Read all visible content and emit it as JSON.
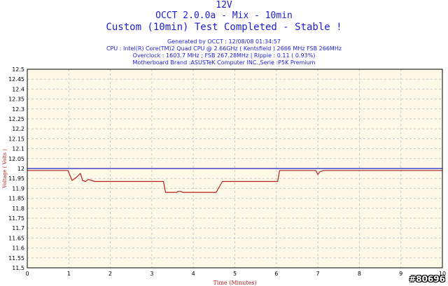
{
  "header": {
    "line1": "12V",
    "line2": "OCCT 2.0.0a - Mix - 10min",
    "line3": "Custom (10min) Test Completed - Stable !",
    "generated": "Generated by OCCT : 12/08/08 01:34:57",
    "cpu": "CPU : Intel(R) Core(TM)2 Quad CPU @ 2.66GHz ( Kentsfield ) 2666 MHz FSB 266MHz",
    "overclock": "Overclock : 1603.7 MHz ; FSB 267.28MHz | Ripple : 0.11 ( 0.93%)",
    "motherboard": "Motherboard Brand :ASUSTeK Computer INC.,Serie :P5K Premium"
  },
  "watermark": "#80696",
  "colors": {
    "plot_bg": "#fdf9e6",
    "grid": "#c8c8c8",
    "axis_label": "#b42020",
    "title": "#1c1cd4",
    "series_voltage": "#b42020",
    "series_reference": "#2020c8"
  },
  "chart_data": {
    "type": "line",
    "xlabel": "Time (Minutes)",
    "ylabel": "Voltage ( Volts )",
    "xlim": [
      0,
      10
    ],
    "ylim": [
      11.5,
      12.5
    ],
    "xticks": [
      "0",
      "1",
      "2",
      "3",
      "4",
      "5",
      "6",
      "7",
      "8",
      "9",
      "10"
    ],
    "yticks": [
      "11.5",
      "11.55",
      "11.6",
      "11.65",
      "11.7",
      "11.75",
      "11.8",
      "11.85",
      "11.9",
      "11.95",
      "12",
      "12.05",
      "12.1",
      "12.15",
      "12.2",
      "12.25",
      "12.3",
      "12.35",
      "12.4",
      "12.45",
      "12.5"
    ],
    "grid": true,
    "series": [
      {
        "x": [
          0,
          0.98,
          1.08,
          1.18,
          1.28,
          1.33,
          1.4,
          1.47,
          1.55,
          1.62,
          3.28,
          3.33,
          3.6,
          3.63,
          3.7,
          3.74,
          4.55,
          4.7,
          5.0,
          6.03,
          6.08,
          6.95,
          7.0,
          7.05,
          7.15,
          10
        ],
        "y": [
          11.99,
          11.99,
          11.94,
          11.955,
          11.975,
          11.94,
          11.935,
          11.945,
          11.94,
          11.935,
          11.935,
          11.88,
          11.88,
          11.885,
          11.885,
          11.88,
          11.88,
          11.935,
          11.935,
          11.935,
          11.99,
          11.99,
          11.97,
          11.985,
          11.99,
          11.99
        ]
      },
      {
        "x": [
          0,
          10
        ],
        "y": [
          12.0,
          12.0
        ]
      }
    ]
  }
}
